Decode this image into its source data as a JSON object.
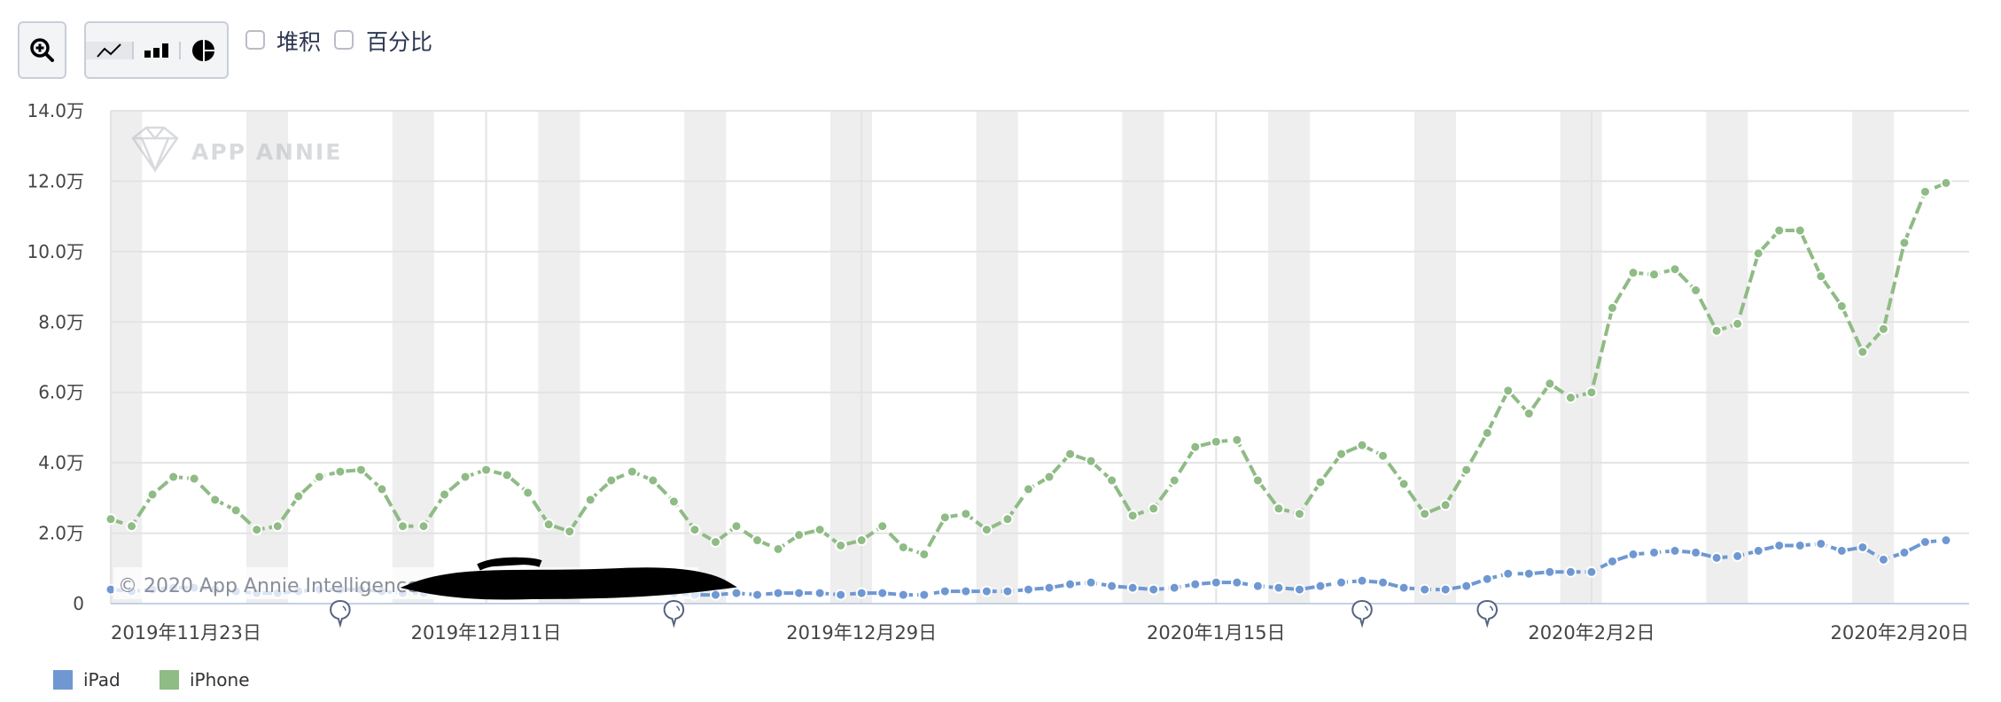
{
  "toolbar": {
    "zoom_icon": "zoom-in-magnifier-icon",
    "chart_types": [
      {
        "icon": "line-chart-icon",
        "active": true
      },
      {
        "icon": "bar-chart-icon",
        "active": false
      },
      {
        "icon": "pie-chart-icon",
        "active": false
      }
    ],
    "stacked_label": "堆积",
    "stacked_checked": false,
    "percent_label": "百分比",
    "percent_checked": false
  },
  "watermark": {
    "logo_text": "APP ANNIE",
    "copyright": "© 2020 App Annie Intelligence"
  },
  "colors": {
    "ipad": "#6f98d2",
    "iphone": "#8fbb85",
    "weekend": "#eeeeee",
    "grid": "#e3e3e3"
  },
  "chart_data": {
    "type": "line",
    "title": "",
    "xlabel": "",
    "ylabel": "",
    "ylim": [
      0,
      140000
    ],
    "y_ticks": [
      "0",
      "2.0万",
      "4.0万",
      "6.0万",
      "8.0万",
      "10.0万",
      "12.0万",
      "14.0万"
    ],
    "x_ticks": [
      {
        "date": "2019-11-23",
        "label": "2019年11月23日"
      },
      {
        "date": "2019-12-11",
        "label": "2019年12月11日"
      },
      {
        "date": "2019-12-29",
        "label": "2019年12月29日"
      },
      {
        "date": "2020-01-15",
        "label": "2020年1月15日"
      },
      {
        "date": "2020-02-02",
        "label": "2020年2月2日"
      },
      {
        "date": "2020-02-20",
        "label": "2020年2月20日"
      }
    ],
    "weekend_shading": true,
    "grid": true,
    "legend_position": "bottom-left",
    "event_markers": [
      "2019-12-04",
      "2019-12-20",
      "2020-01-22",
      "2020-01-28"
    ],
    "x": [
      "2019-11-23",
      "2019-11-24",
      "2019-11-25",
      "2019-11-26",
      "2019-11-27",
      "2019-11-28",
      "2019-11-29",
      "2019-11-30",
      "2019-12-01",
      "2019-12-02",
      "2019-12-03",
      "2019-12-04",
      "2019-12-05",
      "2019-12-06",
      "2019-12-07",
      "2019-12-08",
      "2019-12-09",
      "2019-12-10",
      "2019-12-11",
      "2019-12-12",
      "2019-12-13",
      "2019-12-14",
      "2019-12-15",
      "2019-12-16",
      "2019-12-17",
      "2019-12-18",
      "2019-12-19",
      "2019-12-20",
      "2019-12-21",
      "2019-12-22",
      "2019-12-23",
      "2019-12-24",
      "2019-12-25",
      "2019-12-26",
      "2019-12-27",
      "2019-12-28",
      "2019-12-29",
      "2019-12-30",
      "2019-12-31",
      "2020-01-01",
      "2020-01-02",
      "2020-01-03",
      "2020-01-04",
      "2020-01-05",
      "2020-01-06",
      "2020-01-07",
      "2020-01-08",
      "2020-01-09",
      "2020-01-10",
      "2020-01-11",
      "2020-01-12",
      "2020-01-13",
      "2020-01-14",
      "2020-01-15",
      "2020-01-16",
      "2020-01-17",
      "2020-01-18",
      "2020-01-19",
      "2020-01-20",
      "2020-01-21",
      "2020-01-22",
      "2020-01-23",
      "2020-01-24",
      "2020-01-25",
      "2020-01-26",
      "2020-01-27",
      "2020-01-28",
      "2020-01-29",
      "2020-01-30",
      "2020-01-31",
      "2020-02-01",
      "2020-02-02",
      "2020-02-03",
      "2020-02-04",
      "2020-02-05",
      "2020-02-06",
      "2020-02-07",
      "2020-02-08",
      "2020-02-09",
      "2020-02-10",
      "2020-02-11",
      "2020-02-12",
      "2020-02-13",
      "2020-02-14",
      "2020-02-15",
      "2020-02-16",
      "2020-02-17",
      "2020-02-18",
      "2020-02-19"
    ],
    "series": [
      {
        "name": "iPad",
        "color": "#6f98d2",
        "values": [
          4000,
          3500,
          4000,
          4500,
          4500,
          4000,
          3500,
          3000,
          3000,
          3500,
          4000,
          4000,
          4000,
          3500,
          3000,
          3000,
          3500,
          4000,
          4000,
          4000,
          3500,
          3000,
          3000,
          3500,
          3500,
          3500,
          3500,
          3000,
          2500,
          2500,
          3000,
          2500,
          3000,
          3000,
          3000,
          2500,
          3000,
          3000,
          2500,
          2500,
          3500,
          3500,
          3500,
          3500,
          4000,
          4500,
          5500,
          6000,
          5000,
          4500,
          4000,
          4500,
          5500,
          6000,
          6000,
          5000,
          4500,
          4000,
          5000,
          6000,
          6500,
          6000,
          4500,
          4000,
          4000,
          5000,
          7000,
          8500,
          8500,
          9000,
          9000,
          9000,
          12000,
          14000,
          14500,
          15000,
          14500,
          13000,
          13500,
          15000,
          16500,
          16500,
          17000,
          15000,
          16000,
          12500,
          14500,
          17500,
          18000
        ]
      },
      {
        "name": "iPhone",
        "color": "#8fbb85",
        "values": [
          24000,
          22000,
          31000,
          36000,
          35500,
          29500,
          26500,
          21000,
          22000,
          30500,
          36000,
          37500,
          38000,
          32500,
          22000,
          22000,
          31000,
          36000,
          38000,
          36500,
          31500,
          22500,
          20500,
          29500,
          35000,
          37500,
          35000,
          29000,
          21000,
          17500,
          22000,
          18000,
          15500,
          19500,
          21000,
          16500,
          18000,
          22000,
          16000,
          14000,
          24500,
          25500,
          21000,
          24000,
          32500,
          36000,
          42500,
          40500,
          35000,
          25000,
          27000,
          35000,
          44500,
          46000,
          46500,
          35000,
          27000,
          25500,
          34500,
          42500,
          45000,
          42000,
          34000,
          25500,
          28000,
          38000,
          48500,
          60500,
          54000,
          62500,
          58500,
          60000,
          84000,
          94000,
          93500,
          95000,
          89000,
          77500,
          79500,
          99500,
          106000,
          106000,
          93000,
          84500,
          71500,
          78000,
          102500,
          117000,
          119500
        ]
      }
    ]
  }
}
